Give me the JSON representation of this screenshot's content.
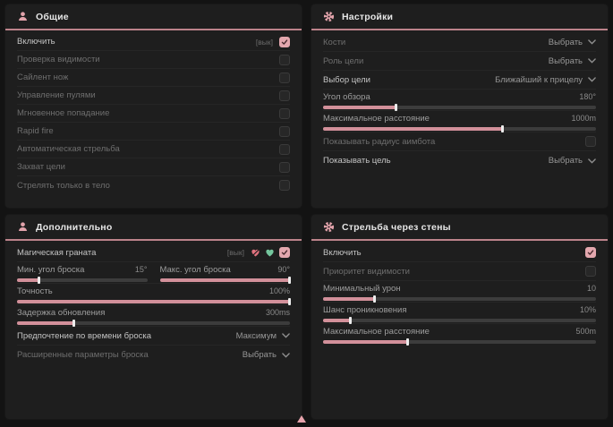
{
  "colors": {
    "accent": "#bc838b",
    "icon_pink": "#e2a3ab",
    "checkbox_checked": "#e3a7ae",
    "slider_fill": "#d2909a",
    "heart_off": "#e0737f",
    "heart_on": "#74c69d",
    "cursor": "#e6a3ac",
    "panel_bg": "#1e1e1e",
    "page_bg": "#131313"
  },
  "cursor": {
    "shape": "triangle-up",
    "color": "#e6a3ac"
  },
  "panels": [
    {
      "id": "general",
      "title": "Общие",
      "icon": "users",
      "rows": [
        {
          "type": "checkbox",
          "label": "Включить",
          "hint": "[вык]",
          "checked": true,
          "bright": true
        },
        {
          "type": "checkbox",
          "label": "Проверка видимости",
          "checked": false
        },
        {
          "type": "checkbox",
          "label": "Сайлент нож",
          "checked": false
        },
        {
          "type": "checkbox",
          "label": "Управление пулями",
          "checked": false
        },
        {
          "type": "checkbox",
          "label": "Мгновенное попадание",
          "checked": false
        },
        {
          "type": "checkbox",
          "label": "Rapid fire",
          "checked": false
        },
        {
          "type": "checkbox",
          "label": "Автоматическая стрельба",
          "checked": false
        },
        {
          "type": "checkbox",
          "label": "Захват цели",
          "checked": false
        },
        {
          "type": "checkbox",
          "label": "Стрелять только в тело",
          "checked": false
        }
      ]
    },
    {
      "id": "settings",
      "title": "Настройки",
      "icon": "gear",
      "rows": [
        {
          "type": "dropdown",
          "label": "Кости",
          "value": "Выбрать"
        },
        {
          "type": "dropdown",
          "label": "Роль цели",
          "value": "Выбрать"
        },
        {
          "type": "dropdown",
          "label": "Выбор цели",
          "value": "Ближайший к прицелу",
          "bright": true
        },
        {
          "type": "slider",
          "label": "Угол обзора",
          "value": "180°",
          "fill": 27
        },
        {
          "type": "slider",
          "label": "Максимальное расстояние",
          "value": "1000m",
          "fill": 66
        },
        {
          "type": "checkbox",
          "label": "Показывать радиус аимбота",
          "checked": false
        },
        {
          "type": "dropdown",
          "label": "Показывать цель",
          "value": "Выбрать",
          "bright": true
        }
      ]
    },
    {
      "id": "additional",
      "title": "Дополнительно",
      "icon": "users",
      "rows": [
        {
          "type": "feature",
          "label": "Магическая граната",
          "hint": "[вык]",
          "icons": [
            "heart-off",
            "heart-on"
          ],
          "checked": true,
          "bright": true
        },
        {
          "type": "slider-pair",
          "sliders": [
            {
              "label": "Мин. угол броска",
              "value": "15°",
              "fill": 17
            },
            {
              "label": "Макс. угол броска",
              "value": "90°",
              "fill": 100
            }
          ]
        },
        {
          "type": "slider",
          "label": "Точность",
          "value": "100%",
          "fill": 100
        },
        {
          "type": "slider",
          "label": "Задержка обновления",
          "value": "300ms",
          "fill": 21
        },
        {
          "type": "dropdown",
          "label": "Предпочтение по времени броска",
          "value": "Максимум",
          "bright": true
        },
        {
          "type": "dropdown",
          "label": "Расширенные параметры броска",
          "value": "Выбрать"
        }
      ]
    },
    {
      "id": "wallshoot",
      "title": "Стрельба через стены",
      "icon": "gear",
      "rows": [
        {
          "type": "checkbox",
          "label": "Включить",
          "checked": true,
          "bright": true
        },
        {
          "type": "checkbox",
          "label": "Приоритет видимости",
          "checked": false
        },
        {
          "type": "slider",
          "label": "Минимальный урон",
          "value": "10",
          "fill": 19
        },
        {
          "type": "slider",
          "label": "Шанс проникновения",
          "value": "10%",
          "fill": 10
        },
        {
          "type": "slider",
          "label": "Максимальное расстояние",
          "value": "500m",
          "fill": 31
        }
      ]
    }
  ]
}
